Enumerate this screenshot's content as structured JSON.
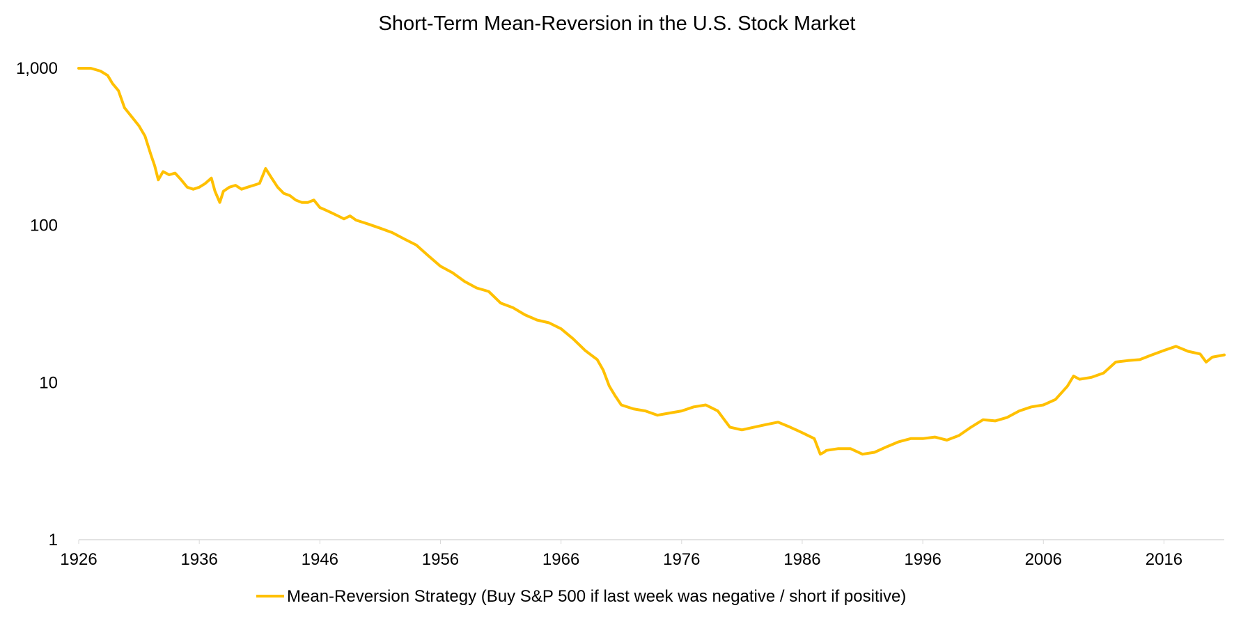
{
  "chart_data": {
    "type": "line",
    "title": "Short-Term Mean-Reversion in the U.S. Stock Market",
    "xlabel": "",
    "ylabel": "",
    "y_scale": "log",
    "ylim": [
      1,
      1000
    ],
    "xlim": [
      1926,
      2021
    ],
    "x_ticks": [
      1926,
      1936,
      1946,
      1956,
      1966,
      1976,
      1986,
      1996,
      2006,
      2016
    ],
    "x_tick_labels": [
      "1926",
      "1936",
      "1946",
      "1956",
      "1966",
      "1976",
      "1986",
      "1996",
      "2006",
      "2016"
    ],
    "y_ticks": [
      1,
      10,
      100,
      1000
    ],
    "y_tick_labels": [
      "1",
      "10",
      "100",
      "1,000"
    ],
    "grid": false,
    "legend_position": "bottom",
    "series": [
      {
        "name": "Mean-Reversion Strategy (Buy S&P 500 if last week was negative / short if positive)",
        "color": "#FFC000",
        "x": [
          1926.0,
          1927.0,
          1927.8,
          1928.4,
          1928.8,
          1929.3,
          1929.8,
          1930.5,
          1931.0,
          1931.5,
          1932.0,
          1932.3,
          1932.6,
          1933.0,
          1933.5,
          1934.0,
          1934.5,
          1935.0,
          1935.5,
          1936.0,
          1936.5,
          1937.0,
          1937.3,
          1937.7,
          1938.0,
          1938.5,
          1939.0,
          1939.5,
          1940.0,
          1940.5,
          1941.0,
          1941.5,
          1942.0,
          1942.5,
          1943.0,
          1943.5,
          1944.0,
          1944.5,
          1945.0,
          1945.5,
          1946.0,
          1946.5,
          1947.0,
          1947.5,
          1948.0,
          1948.5,
          1949.0,
          1949.5,
          1950.0,
          1951.0,
          1952.0,
          1953.0,
          1954.0,
          1955.0,
          1956.0,
          1957.0,
          1958.0,
          1959.0,
          1960.0,
          1961.0,
          1962.0,
          1963.0,
          1964.0,
          1965.0,
          1966.0,
          1967.0,
          1968.0,
          1969.0,
          1969.5,
          1970.0,
          1970.5,
          1971.0,
          1972.0,
          1973.0,
          1974.0,
          1975.0,
          1976.0,
          1977.0,
          1978.0,
          1979.0,
          1980.0,
          1981.0,
          1982.0,
          1983.0,
          1984.0,
          1985.0,
          1986.0,
          1987.0,
          1987.5,
          1987.8,
          1988.0,
          1989.0,
          1990.0,
          1991.0,
          1992.0,
          1993.0,
          1994.0,
          1995.0,
          1996.0,
          1997.0,
          1998.0,
          1999.0,
          2000.0,
          2001.0,
          2002.0,
          2003.0,
          2004.0,
          2005.0,
          2006.0,
          2007.0,
          2008.0,
          2008.5,
          2009.0,
          2010.0,
          2011.0,
          2012.0,
          2013.0,
          2014.0,
          2015.0,
          2016.0,
          2017.0,
          2018.0,
          2019.0,
          2019.5,
          2020.0,
          2021.0
        ],
        "values": [
          1000,
          1000,
          960,
          900,
          800,
          720,
          560,
          480,
          430,
          370,
          280,
          240,
          195,
          220,
          210,
          215,
          195,
          175,
          170,
          175,
          185,
          200,
          165,
          140,
          165,
          175,
          180,
          170,
          175,
          180,
          185,
          230,
          200,
          175,
          160,
          155,
          145,
          140,
          140,
          145,
          130,
          125,
          120,
          115,
          110,
          115,
          108,
          105,
          102,
          96,
          90,
          82,
          75,
          64,
          55,
          50,
          44,
          40,
          38,
          32,
          30,
          27,
          25,
          24,
          22,
          19,
          16,
          14,
          12,
          9.5,
          8.2,
          7.2,
          6.8,
          6.6,
          6.2,
          6.4,
          6.6,
          7.0,
          7.2,
          6.6,
          5.2,
          5.0,
          5.2,
          5.4,
          5.6,
          5.2,
          4.8,
          4.4,
          3.5,
          3.6,
          3.7,
          3.8,
          3.8,
          3.5,
          3.6,
          3.9,
          4.2,
          4.4,
          4.4,
          4.5,
          4.3,
          4.6,
          5.2,
          5.8,
          5.7,
          6.0,
          6.6,
          7.0,
          7.2,
          7.8,
          9.5,
          11.0,
          10.5,
          10.8,
          11.5,
          13.5,
          13.8,
          14.0,
          15.0,
          16.0,
          17.0,
          15.8,
          15.2,
          13.5,
          14.5,
          15.0
        ]
      }
    ]
  }
}
